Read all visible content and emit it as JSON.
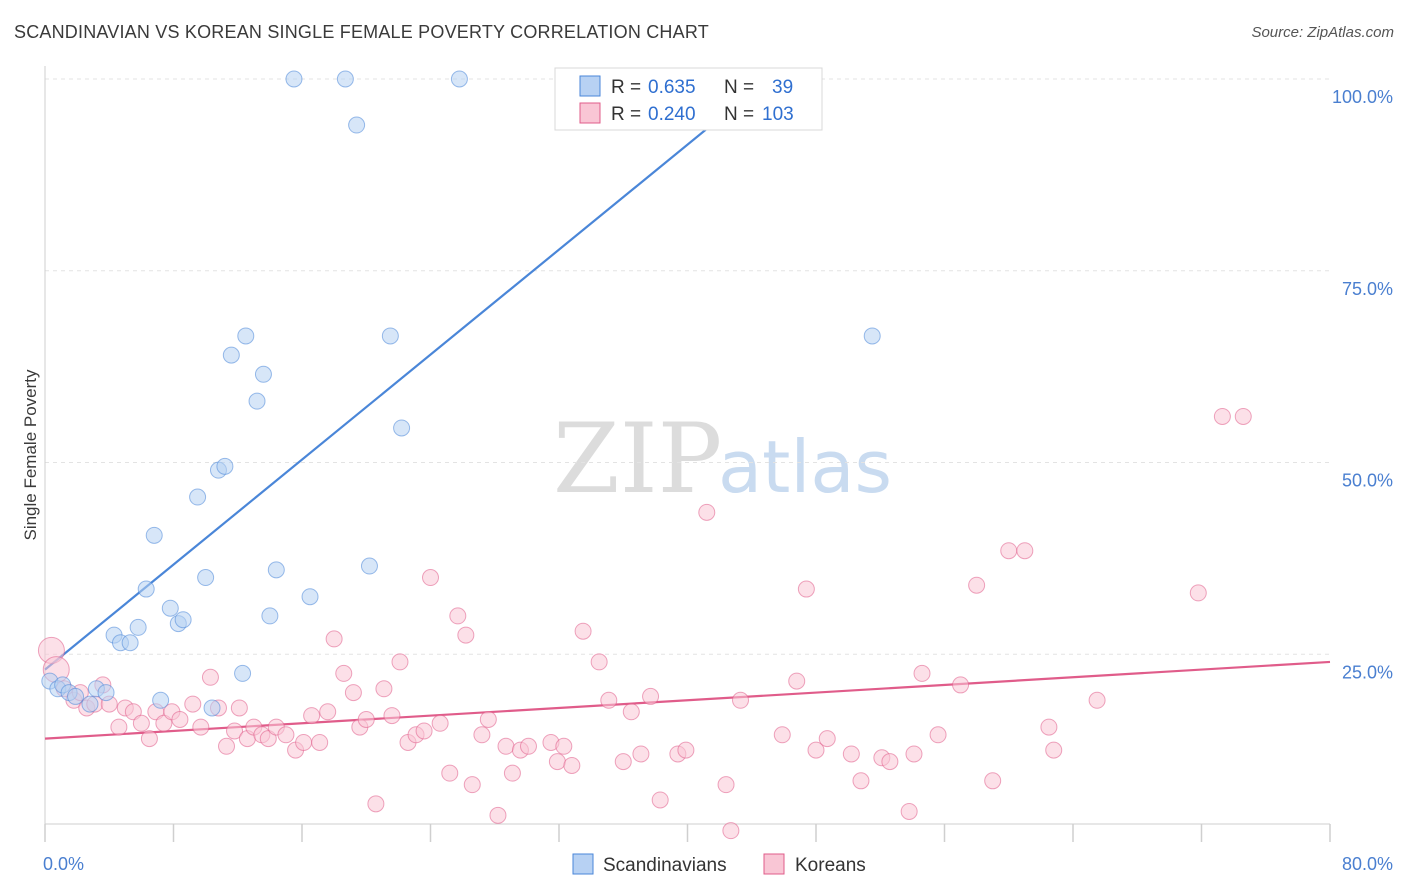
{
  "header": {
    "title": "SCANDINAVIAN VS KOREAN SINGLE FEMALE POVERTY CORRELATION CHART",
    "source": "Source: ZipAtlas.com"
  },
  "watermark": {
    "zip": "ZIP",
    "atlas": "atlas"
  },
  "legend_top": [
    {
      "r_label": "R =",
      "r_value": "0.635",
      "n_label": "N =",
      "n_value": "39",
      "color": "#a9c8f0"
    },
    {
      "r_label": "R =",
      "r_value": "0.240",
      "n_label": "N =",
      "n_value": "103",
      "color": "#f7b8cb"
    }
  ],
  "legend_bottom": [
    {
      "label": "Scandinavians",
      "color": "#a9c8f0"
    },
    {
      "label": "Koreans",
      "color": "#f7b8cb"
    }
  ],
  "chart_data": {
    "type": "scatter",
    "title": "SCANDINAVIAN VS KOREAN SINGLE FEMALE POVERTY CORRELATION CHART",
    "xlabel": "",
    "ylabel": "Single Female Poverty",
    "xlim": [
      0,
      80
    ],
    "ylim": [
      0,
      105
    ],
    "x_tick_labels": [
      "0.0%",
      "80.0%"
    ],
    "y_ticks": [
      25,
      50,
      75,
      100
    ],
    "y_tick_labels": [
      "25.0%",
      "50.0%",
      "75.0%",
      "100.0%"
    ],
    "grid": true,
    "legend_position": "top-center",
    "series": [
      {
        "name": "Scandinavians",
        "color": "#4a86d8",
        "fill": "#b7d1f3",
        "trend": {
          "x": [
            0,
            45
          ],
          "y": [
            23.0,
            100.0
          ]
        },
        "points": [
          [
            0.3,
            21.5
          ],
          [
            0.8,
            20.5
          ],
          [
            1.1,
            21.0
          ],
          [
            1.5,
            20.0
          ],
          [
            1.9,
            19.5
          ],
          [
            2.8,
            18.5
          ],
          [
            3.2,
            20.5
          ],
          [
            3.8,
            20.0
          ],
          [
            4.3,
            27.5
          ],
          [
            4.7,
            26.5
          ],
          [
            5.3,
            26.5
          ],
          [
            5.8,
            28.5
          ],
          [
            6.3,
            33.5
          ],
          [
            6.8,
            40.5
          ],
          [
            7.2,
            19.0
          ],
          [
            7.8,
            31.0
          ],
          [
            8.3,
            29.0
          ],
          [
            8.6,
            29.5
          ],
          [
            9.5,
            45.5
          ],
          [
            10.0,
            35.0
          ],
          [
            10.4,
            18.0
          ],
          [
            10.8,
            49.0
          ],
          [
            11.2,
            49.5
          ],
          [
            11.6,
            64.0
          ],
          [
            12.3,
            22.5
          ],
          [
            12.5,
            66.5
          ],
          [
            13.2,
            58.0
          ],
          [
            13.6,
            61.5
          ],
          [
            14.0,
            30.0
          ],
          [
            14.4,
            36.0
          ],
          [
            15.5,
            100.0
          ],
          [
            16.5,
            32.5
          ],
          [
            18.7,
            100.0
          ],
          [
            19.4,
            94.0
          ],
          [
            20.2,
            36.5
          ],
          [
            21.5,
            66.5
          ],
          [
            22.2,
            54.5
          ],
          [
            25.8,
            100.0
          ],
          [
            51.5,
            66.5
          ]
        ]
      },
      {
        "name": "Koreans",
        "color": "#e05c8a",
        "fill": "#f9c6d5",
        "trend": {
          "x": [
            0,
            80
          ],
          "y": [
            14.0,
            24.0
          ]
        },
        "points": [
          [
            0.4,
            25.5
          ],
          [
            0.7,
            23.0
          ],
          [
            1.2,
            20.5
          ],
          [
            1.8,
            19.0
          ],
          [
            2.2,
            20.0
          ],
          [
            2.6,
            18.0
          ],
          [
            3.1,
            18.5
          ],
          [
            3.6,
            21.0
          ],
          [
            4.0,
            18.5
          ],
          [
            4.6,
            15.5
          ],
          [
            5.0,
            18.0
          ],
          [
            5.5,
            17.5
          ],
          [
            6.0,
            16.0
          ],
          [
            6.5,
            14.0
          ],
          [
            6.9,
            17.5
          ],
          [
            7.4,
            16.0
          ],
          [
            7.9,
            17.5
          ],
          [
            8.4,
            16.5
          ],
          [
            9.2,
            18.5
          ],
          [
            9.7,
            15.5
          ],
          [
            10.3,
            22.0
          ],
          [
            10.8,
            18.0
          ],
          [
            11.3,
            13.0
          ],
          [
            11.8,
            15.0
          ],
          [
            12.1,
            18.0
          ],
          [
            12.6,
            14.0
          ],
          [
            13.0,
            15.5
          ],
          [
            13.5,
            14.5
          ],
          [
            13.9,
            14.0
          ],
          [
            14.4,
            15.5
          ],
          [
            15.0,
            14.5
          ],
          [
            15.6,
            12.5
          ],
          [
            16.1,
            13.5
          ],
          [
            16.6,
            17.0
          ],
          [
            17.1,
            13.5
          ],
          [
            17.6,
            17.5
          ],
          [
            18.0,
            27.0
          ],
          [
            18.6,
            22.5
          ],
          [
            19.2,
            20.0
          ],
          [
            19.6,
            15.5
          ],
          [
            20.0,
            16.5
          ],
          [
            20.6,
            5.5
          ],
          [
            21.1,
            20.5
          ],
          [
            21.6,
            17.0
          ],
          [
            22.1,
            24.0
          ],
          [
            22.6,
            13.5
          ],
          [
            23.1,
            14.5
          ],
          [
            23.6,
            15.0
          ],
          [
            24.0,
            35.0
          ],
          [
            24.6,
            16.0
          ],
          [
            25.2,
            9.5
          ],
          [
            25.7,
            30.0
          ],
          [
            26.2,
            27.5
          ],
          [
            26.6,
            8.0
          ],
          [
            27.2,
            14.5
          ],
          [
            27.6,
            16.5
          ],
          [
            28.2,
            4.0
          ],
          [
            28.7,
            13.0
          ],
          [
            29.1,
            9.5
          ],
          [
            29.6,
            12.5
          ],
          [
            30.1,
            13.0
          ],
          [
            31.5,
            13.5
          ],
          [
            31.9,
            11.0
          ],
          [
            32.3,
            13.0
          ],
          [
            32.8,
            10.5
          ],
          [
            33.5,
            28.0
          ],
          [
            34.5,
            24.0
          ],
          [
            35.1,
            19.0
          ],
          [
            36.0,
            11.0
          ],
          [
            36.5,
            17.5
          ],
          [
            37.1,
            12.0
          ],
          [
            37.7,
            19.5
          ],
          [
            38.3,
            6.0
          ],
          [
            39.4,
            12.0
          ],
          [
            41.2,
            43.5
          ],
          [
            42.4,
            8.0
          ],
          [
            43.3,
            19.0
          ],
          [
            45.9,
            14.5
          ],
          [
            46.8,
            21.5
          ],
          [
            47.4,
            33.5
          ],
          [
            48.0,
            12.5
          ],
          [
            48.7,
            14.0
          ],
          [
            50.2,
            12.0
          ],
          [
            50.8,
            8.5
          ],
          [
            52.1,
            11.5
          ],
          [
            52.6,
            11.0
          ],
          [
            53.8,
            4.5
          ],
          [
            54.1,
            12.0
          ],
          [
            54.6,
            22.5
          ],
          [
            55.6,
            14.5
          ],
          [
            57.0,
            21.0
          ],
          [
            58.0,
            34.0
          ],
          [
            59.0,
            8.5
          ],
          [
            60.0,
            38.5
          ],
          [
            61.0,
            38.5
          ],
          [
            62.5,
            15.5
          ],
          [
            62.8,
            12.5
          ],
          [
            65.5,
            19.0
          ],
          [
            71.8,
            33.0
          ],
          [
            73.3,
            56.0
          ],
          [
            74.6,
            56.0
          ],
          [
            42.7,
            2.0
          ],
          [
            39.9,
            12.5
          ]
        ]
      }
    ]
  }
}
